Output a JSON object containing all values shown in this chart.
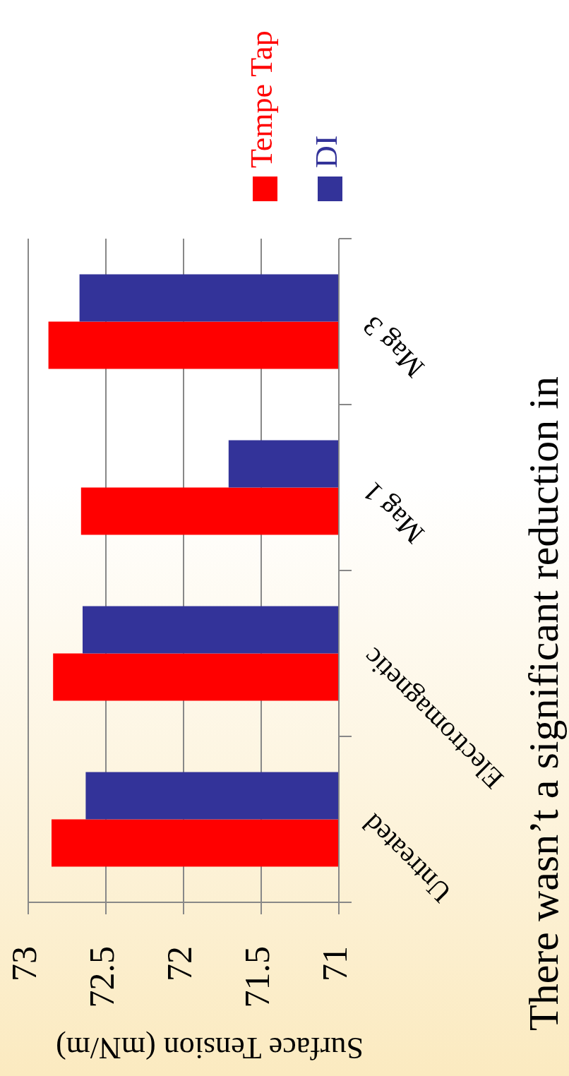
{
  "chart_data": {
    "type": "bar",
    "orientation": "horizontal",
    "xlabel": "Surface Tension (mN/m)",
    "categories": [
      "Mag 3",
      "Mag 1",
      "Electromagnetic",
      "Untreated"
    ],
    "series": [
      {
        "name": "Tempe Tap",
        "color": "#ff0000",
        "values": [
          72.87,
          72.66,
          72.84,
          72.85
        ]
      },
      {
        "name": "DI",
        "color": "#333399",
        "values": [
          72.67,
          71.71,
          72.65,
          72.63
        ]
      }
    ],
    "xlim": [
      73,
      71
    ],
    "xticks": [
      73,
      72.5,
      72,
      71.5,
      71
    ],
    "grid": "x",
    "legend": "top right",
    "annotations": [
      "There wasn’t a significant reduction in"
    ]
  }
}
